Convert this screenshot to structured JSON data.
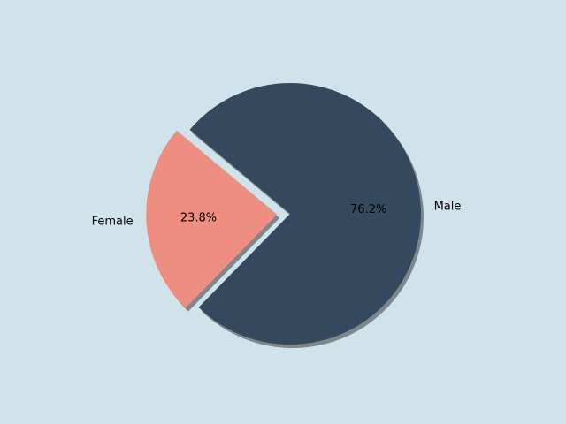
{
  "chart_data": {
    "type": "pie",
    "categories": [
      "Female",
      "Male"
    ],
    "values": [
      23.8,
      76.2
    ],
    "value_labels": [
      "23.8%",
      "76.2%"
    ],
    "colors": [
      "#ee8e80",
      "#34495e"
    ],
    "explode": [
      0.1,
      0
    ],
    "startangle": 140,
    "shadow": true
  }
}
